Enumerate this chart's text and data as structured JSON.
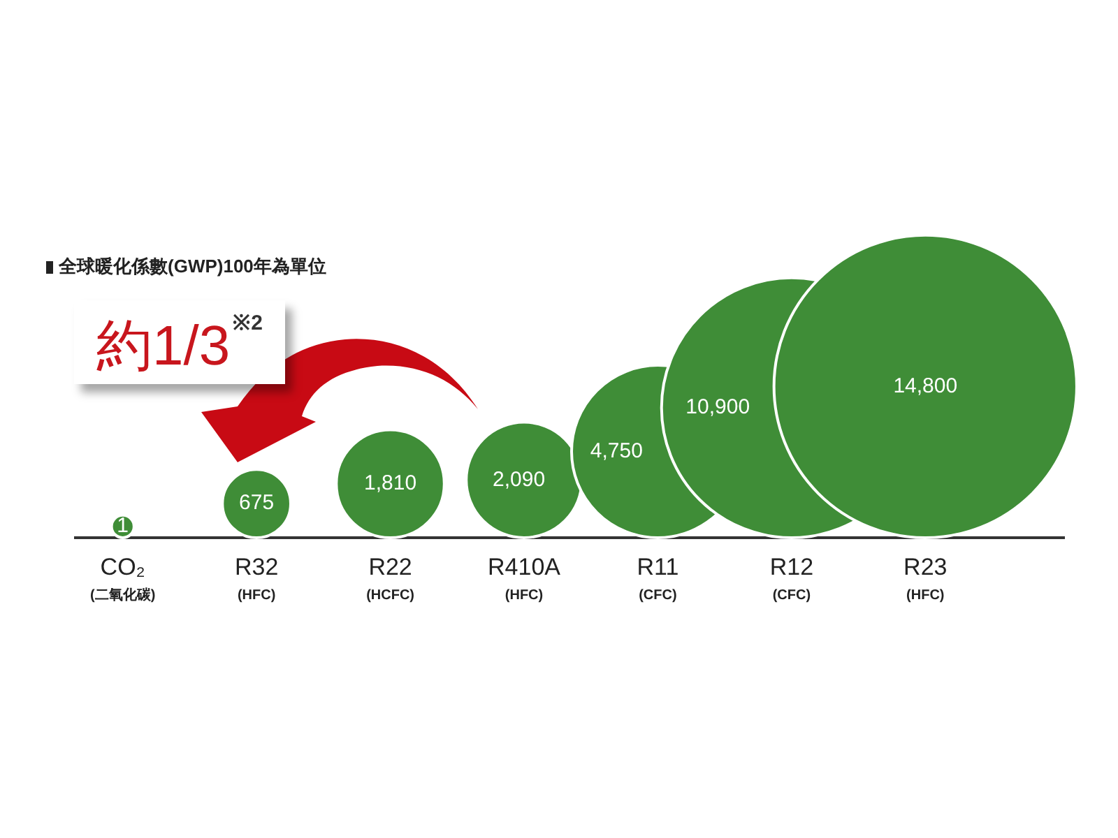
{
  "chart_data": {
    "type": "other",
    "title": "全球暖化係數(GWP)100年為單位",
    "categories": [
      "CO₂\n(二氧化碳)",
      "R32\n(HFC)",
      "R22\n(HCFC)",
      "R410A\n(HFC)",
      "R11\n(CFC)",
      "R12\n(CFC)",
      "R23\n(HFC)"
    ],
    "values": [
      1,
      675,
      1810,
      2090,
      4750,
      10900,
      14800
    ],
    "color": "#3f8d37",
    "value_labels": [
      "1",
      "675",
      "1,810",
      "2,090",
      "4,750",
      "10,900",
      "14,800"
    ],
    "annotations": [
      "約1/3$^{※2}$"
    ]
  }
}
